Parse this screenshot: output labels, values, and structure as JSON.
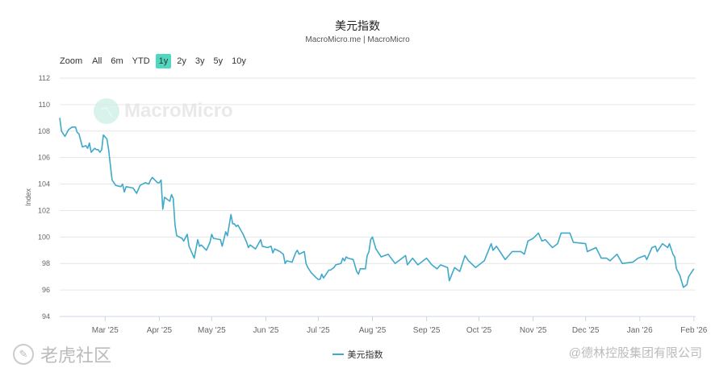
{
  "title": "美元指数",
  "subtitle": "MacroMicro.me | MacroMicro",
  "range_selector": {
    "label": "Zoom",
    "buttons": [
      "All",
      "6m",
      "YTD",
      "1y",
      "2y",
      "3y",
      "5y",
      "10y"
    ],
    "active": "1y"
  },
  "watermark": {
    "brand": "MacroMicro",
    "community": "老虎社区",
    "credit": "@德林控股集团有限公司"
  },
  "colors": {
    "series": "#3fa9c9",
    "active_button": "#4fd8c0"
  },
  "chart_data": {
    "type": "line",
    "title": "美元指数",
    "ylabel": "Index",
    "ylim": [
      94,
      112
    ],
    "yticks": [
      94,
      96,
      98,
      100,
      102,
      104,
      106,
      108,
      110,
      112
    ],
    "xlim": [
      "2025-02-03",
      "2026-02-02"
    ],
    "xticks": [
      {
        "date": "2025-03-01",
        "label": "Mar '25"
      },
      {
        "date": "2025-04-01",
        "label": "Apr '25"
      },
      {
        "date": "2025-05-01",
        "label": "May '25"
      },
      {
        "date": "2025-06-01",
        "label": "Jun '25"
      },
      {
        "date": "2025-07-01",
        "label": "Jul '25"
      },
      {
        "date": "2025-08-01",
        "label": "Aug '25"
      },
      {
        "date": "2025-09-01",
        "label": "Sep '25"
      },
      {
        "date": "2025-10-01",
        "label": "Oct '25"
      },
      {
        "date": "2025-11-01",
        "label": "Nov '25"
      },
      {
        "date": "2025-12-01",
        "label": "Dec '25"
      },
      {
        "date": "2026-01-01",
        "label": "Jan '26"
      },
      {
        "date": "2026-02-01",
        "label": "Feb '26"
      }
    ],
    "grid": true,
    "legend": "bottom-center",
    "series": [
      {
        "name": "美元指数",
        "points": [
          [
            "2025-02-03",
            109.0
          ],
          [
            "2025-02-04",
            108.0
          ],
          [
            "2025-02-06",
            107.6
          ],
          [
            "2025-02-08",
            108.1
          ],
          [
            "2025-02-10",
            108.3
          ],
          [
            "2025-02-12",
            108.3
          ],
          [
            "2025-02-13",
            107.9
          ],
          [
            "2025-02-14",
            107.8
          ],
          [
            "2025-02-16",
            106.8
          ],
          [
            "2025-02-18",
            106.9
          ],
          [
            "2025-02-19",
            106.7
          ],
          [
            "2025-02-20",
            107.1
          ],
          [
            "2025-02-21",
            106.4
          ],
          [
            "2025-02-23",
            106.7
          ],
          [
            "2025-02-24",
            106.6
          ],
          [
            "2025-02-25",
            106.6
          ],
          [
            "2025-02-26",
            106.4
          ],
          [
            "2025-02-27",
            106.6
          ],
          [
            "2025-02-28",
            107.7
          ],
          [
            "2025-03-02",
            107.4
          ],
          [
            "2025-03-03",
            106.6
          ],
          [
            "2025-03-05",
            104.3
          ],
          [
            "2025-03-07",
            103.9
          ],
          [
            "2025-03-10",
            103.8
          ],
          [
            "2025-03-11",
            104.0
          ],
          [
            "2025-03-12",
            103.4
          ],
          [
            "2025-03-13",
            103.8
          ],
          [
            "2025-03-17",
            103.7
          ],
          [
            "2025-03-19",
            103.3
          ],
          [
            "2025-03-21",
            103.9
          ],
          [
            "2025-03-24",
            104.1
          ],
          [
            "2025-03-26",
            104.0
          ],
          [
            "2025-03-27",
            104.3
          ],
          [
            "2025-03-28",
            104.5
          ],
          [
            "2025-03-31",
            104.1
          ],
          [
            "2025-04-01",
            104.1
          ],
          [
            "2025-04-02",
            104.3
          ],
          [
            "2025-04-03",
            102.1
          ],
          [
            "2025-04-04",
            103.0
          ],
          [
            "2025-04-07",
            102.7
          ],
          [
            "2025-04-08",
            103.2
          ],
          [
            "2025-04-09",
            102.9
          ],
          [
            "2025-04-10",
            100.9
          ],
          [
            "2025-04-11",
            100.1
          ],
          [
            "2025-04-14",
            99.9
          ],
          [
            "2025-04-15",
            99.7
          ],
          [
            "2025-04-17",
            100.2
          ],
          [
            "2025-04-18",
            99.3
          ],
          [
            "2025-04-21",
            98.4
          ],
          [
            "2025-04-23",
            99.8
          ],
          [
            "2025-04-24",
            99.3
          ],
          [
            "2025-04-25",
            99.4
          ],
          [
            "2025-04-28",
            99.0
          ],
          [
            "2025-04-30",
            99.6
          ],
          [
            "2025-05-01",
            100.2
          ],
          [
            "2025-05-02",
            99.9
          ],
          [
            "2025-05-06",
            99.8
          ],
          [
            "2025-05-07",
            99.3
          ],
          [
            "2025-05-09",
            100.4
          ],
          [
            "2025-05-10",
            100.1
          ],
          [
            "2025-05-12",
            101.7
          ],
          [
            "2025-05-13",
            101.0
          ],
          [
            "2025-05-14",
            101.0
          ],
          [
            "2025-05-15",
            100.8
          ],
          [
            "2025-05-16",
            100.9
          ],
          [
            "2025-05-19",
            100.2
          ],
          [
            "2025-05-21",
            99.6
          ],
          [
            "2025-05-22",
            99.2
          ],
          [
            "2025-05-23",
            99.4
          ],
          [
            "2025-05-26",
            99.1
          ],
          [
            "2025-05-27",
            99.3
          ],
          [
            "2025-05-29",
            99.8
          ],
          [
            "2025-05-30",
            99.3
          ],
          [
            "2025-06-02",
            99.2
          ],
          [
            "2025-06-04",
            99.3
          ],
          [
            "2025-06-05",
            98.8
          ],
          [
            "2025-06-06",
            99.1
          ],
          [
            "2025-06-09",
            98.9
          ],
          [
            "2025-06-11",
            98.7
          ],
          [
            "2025-06-12",
            98.0
          ],
          [
            "2025-06-13",
            98.2
          ],
          [
            "2025-06-16",
            98.1
          ],
          [
            "2025-06-18",
            98.8
          ],
          [
            "2025-06-19",
            99.0
          ],
          [
            "2025-06-20",
            98.7
          ],
          [
            "2025-06-23",
            98.9
          ],
          [
            "2025-06-24",
            98.0
          ],
          [
            "2025-06-25",
            97.7
          ],
          [
            "2025-06-27",
            97.3
          ],
          [
            "2025-06-30",
            96.9
          ],
          [
            "2025-07-01",
            96.8
          ],
          [
            "2025-07-02",
            96.8
          ],
          [
            "2025-07-03",
            97.2
          ],
          [
            "2025-07-04",
            96.9
          ],
          [
            "2025-07-07",
            97.5
          ],
          [
            "2025-07-08",
            97.5
          ],
          [
            "2025-07-10",
            97.7
          ],
          [
            "2025-07-11",
            97.9
          ],
          [
            "2025-07-14",
            98.0
          ],
          [
            "2025-07-15",
            98.4
          ],
          [
            "2025-07-16",
            98.2
          ],
          [
            "2025-07-17",
            98.5
          ],
          [
            "2025-07-18",
            98.4
          ],
          [
            "2025-07-21",
            98.3
          ],
          [
            "2025-07-23",
            97.4
          ],
          [
            "2025-07-24",
            97.2
          ],
          [
            "2025-07-25",
            97.6
          ],
          [
            "2025-07-28",
            97.6
          ],
          [
            "2025-07-29",
            98.6
          ],
          [
            "2025-07-30",
            98.9
          ],
          [
            "2025-07-31",
            99.8
          ],
          [
            "2025-08-01",
            100.0
          ],
          [
            "2025-08-03",
            99.1
          ],
          [
            "2025-08-06",
            98.5
          ],
          [
            "2025-08-10",
            98.7
          ],
          [
            "2025-08-14",
            98.0
          ],
          [
            "2025-08-20",
            98.6
          ],
          [
            "2025-08-21",
            97.9
          ],
          [
            "2025-08-24",
            98.4
          ],
          [
            "2025-08-27",
            97.9
          ],
          [
            "2025-09-01",
            98.4
          ],
          [
            "2025-09-04",
            97.9
          ],
          [
            "2025-09-07",
            97.6
          ],
          [
            "2025-09-09",
            97.9
          ],
          [
            "2025-09-13",
            97.7
          ],
          [
            "2025-09-14",
            96.7
          ],
          [
            "2025-09-17",
            97.7
          ],
          [
            "2025-09-20",
            97.4
          ],
          [
            "2025-09-23",
            98.6
          ],
          [
            "2025-09-25",
            98.2
          ],
          [
            "2025-09-29",
            97.7
          ],
          [
            "2025-10-04",
            98.2
          ],
          [
            "2025-10-08",
            99.5
          ],
          [
            "2025-10-09",
            99.0
          ],
          [
            "2025-10-11",
            99.3
          ],
          [
            "2025-10-16",
            98.3
          ],
          [
            "2025-10-18",
            98.6
          ],
          [
            "2025-10-20",
            98.9
          ],
          [
            "2025-10-25",
            98.9
          ],
          [
            "2025-10-27",
            98.7
          ],
          [
            "2025-10-29",
            99.7
          ],
          [
            "2025-11-01",
            99.9
          ],
          [
            "2025-11-04",
            100.3
          ],
          [
            "2025-11-06",
            99.7
          ],
          [
            "2025-11-08",
            99.8
          ],
          [
            "2025-11-12",
            99.2
          ],
          [
            "2025-11-15",
            99.5
          ],
          [
            "2025-11-17",
            100.3
          ],
          [
            "2025-11-22",
            100.3
          ],
          [
            "2025-11-24",
            99.6
          ],
          [
            "2025-12-01",
            99.5
          ],
          [
            "2025-12-02",
            98.9
          ],
          [
            "2025-12-07",
            99.2
          ],
          [
            "2025-12-10",
            98.4
          ],
          [
            "2025-12-13",
            98.4
          ],
          [
            "2025-12-15",
            98.2
          ],
          [
            "2025-12-19",
            98.7
          ],
          [
            "2025-12-22",
            98.0
          ],
          [
            "2025-12-28",
            98.1
          ],
          [
            "2025-12-31",
            98.4
          ],
          [
            "2026-01-04",
            98.6
          ],
          [
            "2026-01-05",
            98.3
          ],
          [
            "2026-01-08",
            99.2
          ],
          [
            "2026-01-10",
            99.3
          ],
          [
            "2026-01-11",
            98.9
          ],
          [
            "2026-01-14",
            99.5
          ],
          [
            "2026-01-17",
            99.2
          ],
          [
            "2026-01-18",
            99.5
          ],
          [
            "2026-01-20",
            98.7
          ],
          [
            "2026-01-21",
            98.5
          ],
          [
            "2026-01-22",
            97.6
          ],
          [
            "2026-01-24",
            97.1
          ],
          [
            "2026-01-26",
            96.2
          ],
          [
            "2026-01-28",
            96.4
          ],
          [
            "2026-01-29",
            97.0
          ],
          [
            "2026-02-01",
            97.6
          ]
        ]
      }
    ]
  }
}
